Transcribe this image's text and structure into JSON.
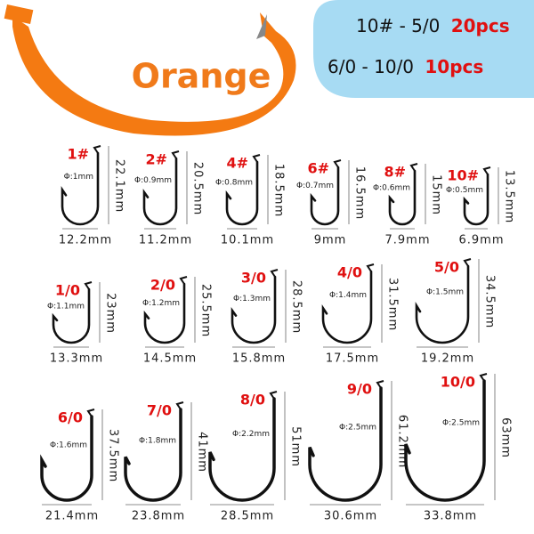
{
  "banner": {
    "color_name": "Orange"
  },
  "quantities": [
    {
      "range": "10# - 5/0",
      "count": "20pcs"
    },
    {
      "range": "6/0 - 10/0",
      "count": "10pcs"
    }
  ],
  "hooks": {
    "rows": [
      [
        {
          "size": "1#",
          "diameter": "Φ:1mm",
          "height": "22.1mm",
          "width": "12.2mm"
        },
        {
          "size": "2#",
          "diameter": "Φ:0.9mm",
          "height": "20.5mm",
          "width": "11.2mm"
        },
        {
          "size": "4#",
          "diameter": "Φ:0.8mm",
          "height": "18.5mm",
          "width": "10.1mm"
        },
        {
          "size": "6#",
          "diameter": "Φ:0.7mm",
          "height": "16.5mm",
          "width": "9mm"
        },
        {
          "size": "8#",
          "diameter": "Φ:0.6mm",
          "height": "15mm",
          "width": "7.9mm"
        },
        {
          "size": "10#",
          "diameter": "Φ:0.5mm",
          "height": "13.5mm",
          "width": "6.9mm"
        }
      ],
      [
        {
          "size": "1/0",
          "diameter": "Φ:1.1mm",
          "height": "23mm",
          "width": "13.3mm"
        },
        {
          "size": "2/0",
          "diameter": "Φ:1.2mm",
          "height": "25.5mm",
          "width": "14.5mm"
        },
        {
          "size": "3/0",
          "diameter": "Φ:1.3mm",
          "height": "28.5mm",
          "width": "15.8mm"
        },
        {
          "size": "4/0",
          "diameter": "Φ:1.4mm",
          "height": "31.5mm",
          "width": "17.5mm"
        },
        {
          "size": "5/0",
          "diameter": "Φ:1.5mm",
          "height": "34.5mm",
          "width": "19.2mm"
        }
      ],
      [
        {
          "size": "6/0",
          "diameter": "Φ:1.6mm",
          "height": "37.5mm",
          "width": "21.4mm"
        },
        {
          "size": "7/0",
          "diameter": "Φ:1.8mm",
          "height": "41mm",
          "width": "23.8mm"
        },
        {
          "size": "8/0",
          "diameter": "Φ:2.2mm",
          "height": "51mm",
          "width": "28.5mm"
        },
        {
          "size": "9/0",
          "diameter": "Φ:2.5mm",
          "height": "61.2mm",
          "width": "30.6mm"
        },
        {
          "size": "10/0",
          "diameter": "Φ:2.5mm",
          "height": "63mm",
          "width": "33.8mm"
        }
      ]
    ]
  }
}
